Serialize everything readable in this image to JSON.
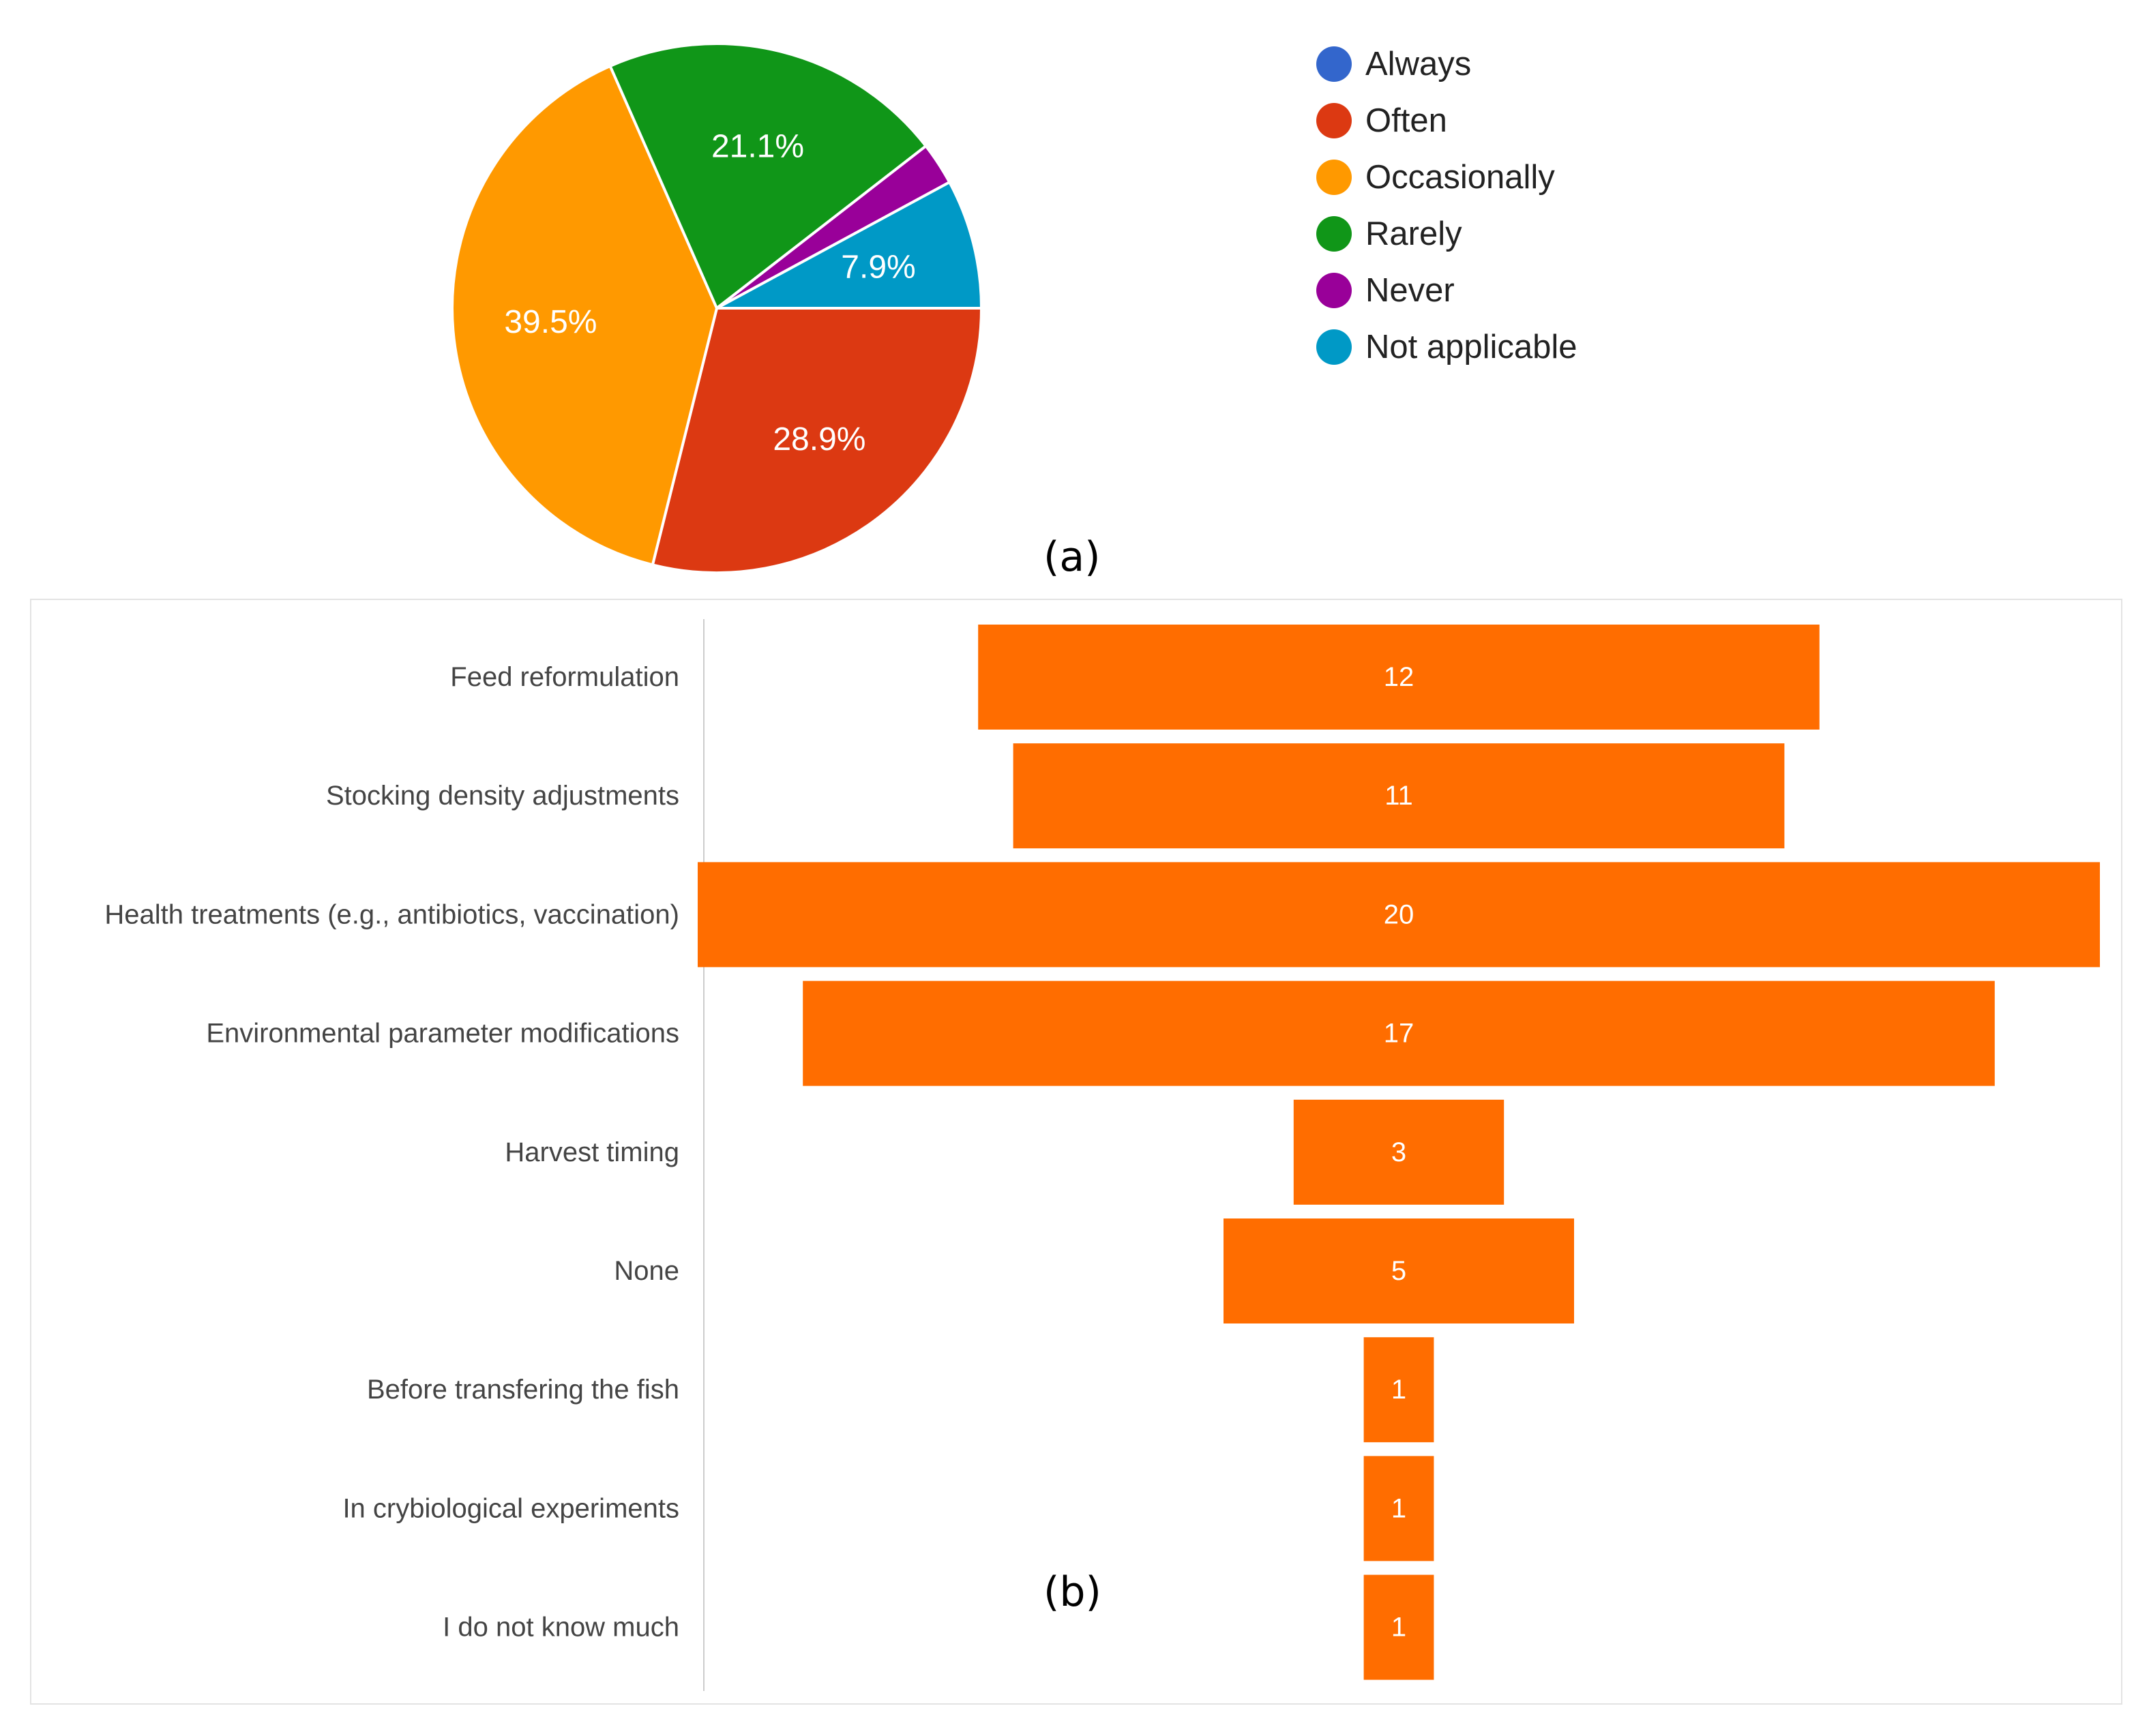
{
  "chart_data": [
    {
      "type": "pie",
      "slices": [
        {
          "label": "Always",
          "value": 0,
          "color": "#3366cc",
          "data_label": ""
        },
        {
          "label": "Often",
          "value": 28.9,
          "color": "#dc3912",
          "data_label": "28.9%"
        },
        {
          "label": "Occasionally",
          "value": 39.5,
          "color": "#ff9900",
          "data_label": "39.5%"
        },
        {
          "label": "Rarely",
          "value": 21.1,
          "color": "#109618",
          "data_label": "21.1%"
        },
        {
          "label": "Never",
          "value": 2.6,
          "color": "#990099",
          "data_label": ""
        },
        {
          "label": "Not applicable",
          "value": 7.9,
          "color": "#0099c6",
          "data_label": "7.9%"
        }
      ],
      "legend_position": "right",
      "caption": "(a)"
    },
    {
      "type": "bar",
      "orientation": "horizontal",
      "style": "centered",
      "categories": [
        "Feed reformulation",
        "Stocking density adjustments",
        "Health treatments (e.g., antibiotics, vaccination)",
        "Environmental parameter modifications",
        "Harvest timing",
        "None",
        "Before transfering the fish",
        "In crybiological experiments",
        "I do not know much"
      ],
      "values": [
        12,
        11,
        20,
        17,
        3,
        5,
        1,
        1,
        1
      ],
      "bar_color": "#ff6d00",
      "xlim": [
        0,
        20
      ],
      "caption": "(b)"
    }
  ]
}
